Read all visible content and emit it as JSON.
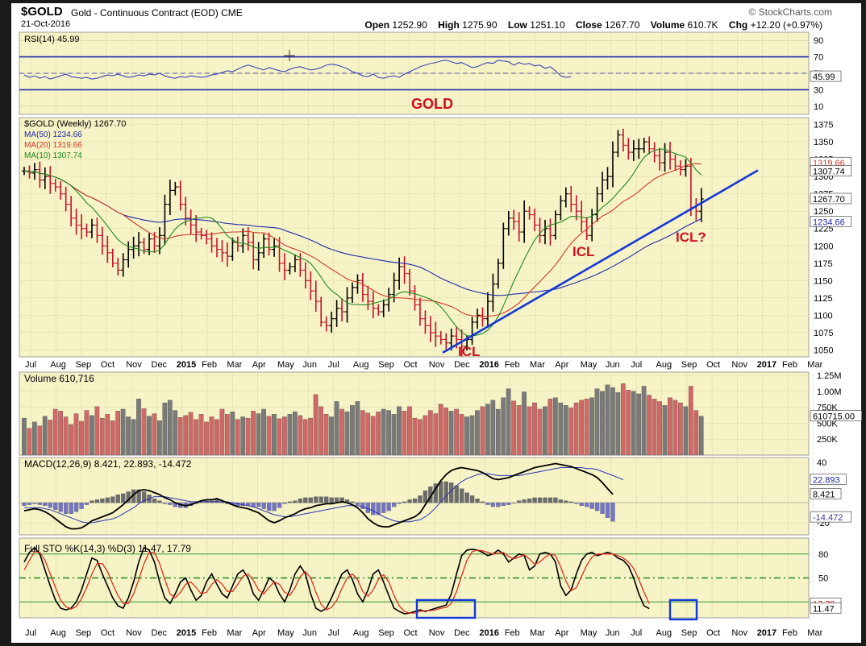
{
  "header": {
    "symbol": "$GOLD",
    "description": "Gold - Continuous Contract (EOD)  CME",
    "date": "21-Oct-2016",
    "open_label": "Open",
    "open": "1252.90",
    "high_label": "High",
    "high": "1275.90",
    "low_label": "Low",
    "low": "1251.10",
    "close_label": "Close",
    "close": "1267.70",
    "volume_label": "Volume",
    "volume": "610.7K",
    "chg_label": "Chg",
    "chg": "+12.20 (+0.97%)",
    "brand": "© StockCharts.com"
  },
  "colors": {
    "panel_bg": "#f6f3c6",
    "bar_up": "#000000",
    "bar_down": "#c8102e",
    "ma50": "#1f2aa8",
    "ma20": "#d23a2a",
    "ma10": "#1f8a1f",
    "trendline": "#1438d8",
    "annotation": "#d01020",
    "macd_hist": "#7474c8",
    "volume_up": "#7a7a7a",
    "volume_down": "#d06868",
    "frame": "#1a1a1a"
  },
  "x_axis": {
    "labels": [
      "Jul",
      "Aug",
      "Sep",
      "Oct",
      "Nov",
      "Dec",
      "2015",
      "Feb",
      "Mar",
      "Apr",
      "May",
      "Jun",
      "Jul",
      "Aug",
      "Sep",
      "Oct",
      "Nov",
      "Dec",
      "2016",
      "Feb",
      "Mar",
      "Apr",
      "May",
      "Jun",
      "Jul",
      "Aug",
      "Sep",
      "Oct",
      "Nov",
      "2017",
      "Feb",
      "Mar"
    ],
    "bold_labels": [
      "2015",
      "2016",
      "2017"
    ]
  },
  "chart_data": [
    {
      "type": "line",
      "name": "RSI",
      "legend": "RSI(14) 45.99",
      "value_label": "45.99",
      "ylim": [
        0,
        100
      ],
      "yticks": [
        "90",
        "70",
        "50",
        "30",
        "10"
      ],
      "overbought": 70,
      "oversold": 30,
      "values": [
        48,
        45,
        47,
        44,
        46,
        43,
        45,
        47,
        49,
        46,
        45,
        44,
        45,
        43,
        44,
        46,
        48,
        47,
        49,
        47,
        45,
        46,
        48,
        47,
        49,
        48,
        50,
        47,
        45,
        44,
        46,
        45,
        47,
        46,
        45,
        46,
        48,
        49,
        51,
        53,
        52,
        55,
        58,
        60,
        58,
        56,
        54,
        57,
        55,
        53,
        52,
        55,
        57,
        58,
        56,
        54,
        55,
        57,
        60,
        61,
        60,
        58,
        56,
        52,
        50,
        47,
        46,
        49,
        45,
        44,
        46,
        47,
        45,
        49,
        52,
        55,
        58,
        60,
        62,
        63,
        65,
        66,
        64,
        62,
        63,
        60,
        57,
        58,
        61,
        63,
        62,
        66,
        65,
        64,
        60,
        63,
        61,
        62,
        59,
        60,
        56,
        58,
        53,
        47,
        45,
        46
      ]
    },
    {
      "type": "ohlc",
      "name": "$GOLD (Weekly)",
      "legend": "$GOLD (Weekly) 1267.70",
      "ylim": [
        1040,
        1385
      ],
      "yticks": [
        "1375",
        "1350",
        "1325",
        "1300",
        "1275",
        "1250",
        "1225",
        "1200",
        "1175",
        "1150",
        "1125",
        "1100",
        "1075",
        "1050"
      ],
      "last_close": "1267.70",
      "closes": [
        1308,
        1305,
        1310,
        1295,
        1300,
        1290,
        1285,
        1275,
        1260,
        1240,
        1230,
        1225,
        1220,
        1230,
        1215,
        1200,
        1190,
        1175,
        1165,
        1180,
        1195,
        1200,
        1205,
        1195,
        1210,
        1200,
        1215,
        1260,
        1280,
        1285,
        1260,
        1240,
        1230,
        1220,
        1215,
        1210,
        1200,
        1195,
        1190,
        1185,
        1205,
        1200,
        1215,
        1205,
        1180,
        1190,
        1210,
        1195,
        1200,
        1175,
        1165,
        1170,
        1180,
        1165,
        1150,
        1135,
        1120,
        1090,
        1085,
        1095,
        1110,
        1105,
        1125,
        1140,
        1150,
        1130,
        1120,
        1110,
        1105,
        1115,
        1130,
        1150,
        1170,
        1160,
        1135,
        1115,
        1095,
        1085,
        1075,
        1070,
        1065,
        1060,
        1070,
        1065,
        1055,
        1065,
        1090,
        1100,
        1095,
        1120,
        1145,
        1175,
        1225,
        1240,
        1235,
        1220,
        1250,
        1245,
        1230,
        1215,
        1225,
        1215,
        1245,
        1265,
        1275,
        1260,
        1250,
        1235,
        1215,
        1245,
        1275,
        1295,
        1300,
        1335,
        1360,
        1345,
        1335,
        1340,
        1340,
        1350,
        1340,
        1330,
        1320,
        1335,
        1325,
        1315,
        1310,
        1315,
        1255,
        1250,
        1267.7
      ],
      "ma50": {
        "legend": "MA(50) 1234.66",
        "value_label": "1234.66"
      },
      "ma20": {
        "legend": "MA(20) 1319.66",
        "value_label": "1319.66"
      },
      "ma10": {
        "legend": "MA(10) 1307.74",
        "value_label": "1307.74"
      },
      "annotations": {
        "title": "GOLD",
        "icl_1": "ICL",
        "icl_2": "ICL",
        "icl_3": "ICL?"
      },
      "trendline": {
        "from": {
          "x": "2015-12-04",
          "y": 1046
        },
        "to": {
          "x": "2016-12-30",
          "y": 1309
        }
      }
    },
    {
      "type": "bar",
      "name": "Volume",
      "legend": "Volume 610,716",
      "value_label": "610715.00",
      "ylim": [
        0,
        1300000
      ],
      "yticks": [
        "1.25M",
        "1.00M",
        "750K",
        "500K",
        "250K"
      ],
      "values": [
        580000,
        420000,
        520000,
        460000,
        610000,
        550000,
        720000,
        690000,
        600000,
        480000,
        650000,
        530000,
        700000,
        620000,
        760000,
        580000,
        640000,
        540000,
        690000,
        720000,
        600000,
        560000,
        880000,
        730000,
        610000,
        650000,
        540000,
        820000,
        860000,
        700000,
        590000,
        620000,
        670000,
        560000,
        640000,
        520000,
        600000,
        560000,
        720000,
        640000,
        680000,
        560000,
        600000,
        580000,
        690000,
        650000,
        720000,
        610000,
        640000,
        570000,
        600000,
        640000,
        680000,
        620000,
        560000,
        580000,
        950000,
        760000,
        640000,
        600000,
        840000,
        720000,
        680000,
        780000,
        840000,
        700000,
        660000,
        610000,
        680000,
        720000,
        700000,
        640000,
        760000,
        690000,
        760000,
        580000,
        560000,
        620000,
        700000,
        650000,
        800000,
        740000,
        690000,
        720000,
        640000,
        600000,
        620000,
        700000,
        760000,
        800000,
        860000,
        720000,
        900000,
        1040000,
        850000,
        780000,
        990000,
        760000,
        820000,
        720000,
        760000,
        880000,
        900000,
        820000,
        780000,
        740000,
        820000,
        860000,
        880000,
        900000,
        1040000,
        1000000,
        1100000,
        1060000,
        980000,
        1120000,
        1020000,
        1000000,
        960000,
        1080000,
        940000,
        880000,
        840000,
        780000,
        900000,
        860000,
        820000,
        760000,
        1080000,
        700000,
        610716
      ]
    },
    {
      "type": "line",
      "name": "MACD",
      "legend": "MACD(12,26,9) 8.421, 22.893, -14.472",
      "legend_values": [
        "8.421",
        "22.893",
        "-14.472"
      ],
      "ylim": [
        -32,
        45
      ],
      "yticks": [
        "40",
        "-20"
      ],
      "macd": [
        -8,
        -7,
        -6,
        -7,
        -9,
        -12,
        -16,
        -20,
        -24,
        -26,
        -26,
        -25,
        -22,
        -18,
        -16,
        -14,
        -12,
        -10,
        -6,
        -2,
        3,
        8,
        12,
        13,
        12,
        10,
        8,
        5,
        3,
        0,
        -2,
        -3,
        -2,
        0,
        2,
        3,
        3,
        4,
        2,
        0,
        -2,
        -4,
        -5,
        -6,
        -8,
        -10,
        -14,
        -18,
        -20,
        -18,
        -15,
        -13,
        -11,
        -8,
        -6,
        -5,
        -3,
        -2,
        -1,
        -1,
        0,
        1,
        0,
        -2,
        -5,
        -10,
        -16,
        -20,
        -23,
        -24,
        -24,
        -22,
        -20,
        -18,
        -16,
        -14,
        -10,
        -2,
        6,
        14,
        22,
        28,
        32,
        34,
        35,
        34,
        33,
        32,
        30,
        27,
        24,
        23,
        24,
        25,
        27,
        29,
        31,
        33,
        35,
        36,
        37,
        38,
        39,
        38,
        37,
        36,
        34,
        32,
        30,
        28,
        25,
        20,
        14,
        8.421
      ],
      "signal": [
        -5,
        -5,
        -5,
        -5,
        -6,
        -7,
        -9,
        -11,
        -13,
        -15,
        -17,
        -19,
        -20,
        -20,
        -19,
        -18,
        -17,
        -16,
        -14,
        -11,
        -8,
        -5,
        -1,
        2,
        4,
        6,
        6,
        6,
        5,
        4,
        3,
        2,
        1,
        1,
        1,
        1,
        1,
        1,
        1,
        1,
        0,
        -1,
        -2,
        -3,
        -4,
        -6,
        -8,
        -10,
        -12,
        -13,
        -14,
        -14,
        -13,
        -12,
        -11,
        -10,
        -9,
        -8,
        -7,
        -6,
        -5,
        -4,
        -3,
        -3,
        -3,
        -4,
        -6,
        -8,
        -11,
        -14,
        -16,
        -18,
        -19,
        -19,
        -19,
        -18,
        -17,
        -14,
        -10,
        -5,
        1,
        7,
        12,
        17,
        21,
        24,
        26,
        28,
        29,
        29,
        28,
        27,
        27,
        27,
        27,
        27,
        28,
        29,
        30,
        31,
        32,
        33,
        34,
        35,
        35,
        35,
        35,
        35,
        34,
        34,
        33,
        31,
        29,
        27,
        25,
        22.893
      ]
    },
    {
      "type": "line",
      "name": "Full STO",
      "legend": "Full STO %K(14,3) %D(3) 11.47, 17.79",
      "legend_values": [
        "11.47",
        "17.79"
      ],
      "ylim": [
        0,
        100
      ],
      "yticks": [
        "80",
        "50"
      ],
      "value_label_k": "11.47",
      "value_label_d": "17.79",
      "k": [
        70,
        82,
        88,
        80,
        60,
        40,
        22,
        12,
        10,
        12,
        20,
        35,
        55,
        75,
        72,
        55,
        40,
        25,
        15,
        12,
        25,
        45,
        70,
        88,
        85,
        70,
        45,
        25,
        18,
        30,
        45,
        50,
        35,
        22,
        28,
        45,
        55,
        42,
        30,
        25,
        40,
        55,
        60,
        50,
        30,
        22,
        35,
        50,
        45,
        30,
        20,
        35,
        55,
        65,
        55,
        30,
        12,
        8,
        12,
        25,
        40,
        55,
        60,
        48,
        30,
        20,
        35,
        55,
        60,
        45,
        28,
        12,
        8,
        5,
        6,
        8,
        10,
        8,
        10,
        12,
        14,
        16,
        30,
        55,
        78,
        85,
        86,
        85,
        82,
        78,
        80,
        85,
        80,
        70,
        75,
        80,
        78,
        60,
        65,
        80,
        82,
        80,
        70,
        40,
        28,
        35,
        55,
        72,
        80,
        82,
        78,
        80,
        82,
        80,
        75,
        72,
        65,
        50,
        30,
        15,
        11.47
      ],
      "d": [
        60,
        72,
        83,
        82,
        72,
        55,
        38,
        22,
        14,
        11,
        14,
        24,
        38,
        55,
        68,
        68,
        58,
        42,
        28,
        18,
        18,
        30,
        48,
        68,
        82,
        82,
        68,
        48,
        30,
        25,
        32,
        42,
        45,
        38,
        30,
        32,
        42,
        48,
        42,
        33,
        33,
        42,
        52,
        55,
        47,
        35,
        30,
        38,
        45,
        42,
        32,
        28,
        38,
        52,
        58,
        50,
        32,
        17,
        10,
        13,
        22,
        37,
        50,
        55,
        48,
        33,
        27,
        35,
        48,
        54,
        45,
        28,
        15,
        8,
        6,
        6,
        8,
        9,
        9,
        10,
        12,
        13,
        18,
        33,
        53,
        72,
        83,
        85,
        84,
        82,
        80,
        81,
        82,
        77,
        74,
        76,
        79,
        74,
        67,
        70,
        76,
        80,
        78,
        64,
        46,
        34,
        38,
        52,
        66,
        76,
        80,
        80,
        80,
        80,
        78,
        75,
        70,
        62,
        48,
        32,
        17.79
      ],
      "highlight_boxes": 2
    }
  ]
}
